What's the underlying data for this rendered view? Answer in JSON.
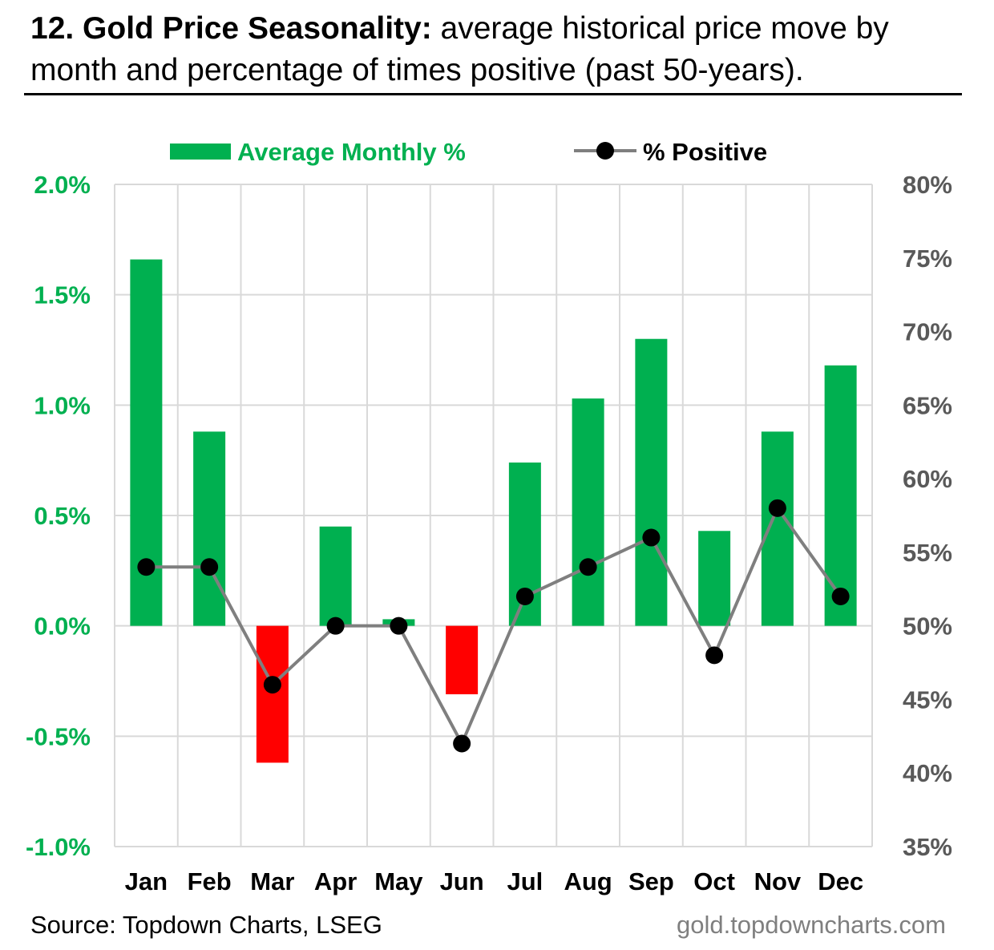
{
  "title": {
    "bold": "12. Gold Price Seasonality:",
    "rest": " average historical price move by month and percentage of times positive (past 50-years)."
  },
  "source": "Source: Topdown Charts, LSEG",
  "website": "gold.topdowncharts.com",
  "colors": {
    "positive_bar": "#00b050",
    "negative_bar": "#ff0000",
    "line": "#7f7f7f",
    "marker": "#000000",
    "left_axis": "#00b050",
    "right_axis": "#595959"
  },
  "chart_data": {
    "type": "bar",
    "categories": [
      "Jan",
      "Feb",
      "Mar",
      "Apr",
      "May",
      "Jun",
      "Jul",
      "Aug",
      "Sep",
      "Oct",
      "Nov",
      "Dec"
    ],
    "series": [
      {
        "name": "Average Monthly %",
        "type": "bar",
        "axis": "left",
        "values": [
          1.66,
          0.88,
          -0.62,
          0.45,
          0.03,
          -0.31,
          0.74,
          1.03,
          1.3,
          0.43,
          0.88,
          1.18
        ]
      },
      {
        "name": "% Positive",
        "type": "line",
        "axis": "right",
        "values": [
          54,
          54,
          46,
          50,
          50,
          42,
          52,
          54,
          56,
          48,
          58,
          52
        ]
      }
    ],
    "y_left": {
      "min": -1.0,
      "max": 2.0,
      "step": 0.5,
      "ticks": [
        "-1.0%",
        "-0.5%",
        "0.0%",
        "0.5%",
        "1.0%",
        "1.5%",
        "2.0%"
      ]
    },
    "y_right": {
      "min": 35,
      "max": 80,
      "step": 5,
      "ticks": [
        "35%",
        "40%",
        "45%",
        "50%",
        "55%",
        "60%",
        "65%",
        "70%",
        "75%",
        "80%"
      ]
    },
    "legend_position": "top",
    "grid": true
  }
}
